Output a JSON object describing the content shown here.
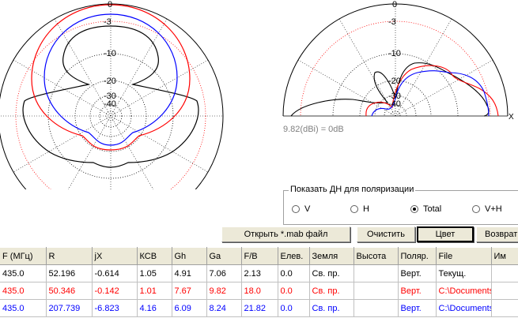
{
  "plot_labels": {
    "left": [
      "0",
      "-3",
      "-10",
      "-20",
      "-30",
      "-40"
    ],
    "right": [
      "0",
      "-3",
      "-10",
      "-20",
      "-30",
      "-40"
    ],
    "axis_x": "X"
  },
  "gain_caption": "9.82(dBi) = 0dB",
  "polarization": {
    "title": "Показать ДН для поляризации",
    "options": [
      {
        "label": "V",
        "selected": false
      },
      {
        "label": "H",
        "selected": false
      },
      {
        "label": "Total",
        "selected": true
      },
      {
        "label": "V+H",
        "selected": false
      }
    ]
  },
  "buttons": {
    "open": "Открыть *.mab файл",
    "clear": "Очистить",
    "color": "Цвет",
    "back": "Возврат"
  },
  "table": {
    "headers": [
      "F (МГц)",
      "R",
      "jX",
      "КСВ",
      "Gh",
      "Ga",
      "F/B",
      "Елев.",
      "Земля",
      "Высота",
      "Поляр.",
      "File",
      "Им"
    ],
    "rows": [
      [
        "435.0",
        "52.196",
        "-0.614",
        "1.05",
        "4.91",
        "7.06",
        "2.13",
        "0.0",
        "Св. пр.",
        "",
        "Верт.",
        "Текущ.",
        ""
      ],
      [
        "435.0",
        "50.346",
        "-0.142",
        "1.01",
        "7.67",
        "9.82",
        "18.0",
        "0.0",
        "Св. пр.",
        "",
        "Верт.",
        "C:\\Documents",
        ""
      ],
      [
        "435.0",
        "207.739",
        "-6.823",
        "4.16",
        "6.09",
        "8.24",
        "21.82",
        "0.0",
        "Св. пр.",
        "",
        "Верт.",
        "C:\\Documents",
        ""
      ]
    ],
    "row_colors": [
      "#000000",
      "#ff0000",
      "#0000ff"
    ]
  }
}
